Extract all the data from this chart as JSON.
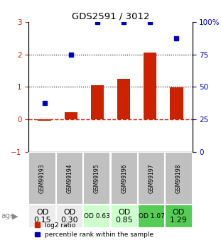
{
  "title": "GDS2591 / 3012",
  "samples": [
    "GSM99193",
    "GSM99194",
    "GSM99195",
    "GSM99196",
    "GSM99197",
    "GSM99198"
  ],
  "log2_ratio": [
    -0.03,
    0.22,
    1.05,
    1.25,
    2.05,
    0.98
  ],
  "percentile_rank": [
    37.5,
    75.0,
    100.0,
    100.0,
    100.0,
    87.5
  ],
  "left_ylim": [
    -1,
    3
  ],
  "right_ylim": [
    0,
    100
  ],
  "left_yticks": [
    -1,
    0,
    1,
    2,
    3
  ],
  "right_yticks": [
    0,
    25,
    50,
    75,
    100
  ],
  "right_yticklabels": [
    "0",
    "25",
    "50",
    "75",
    "100%"
  ],
  "bar_color": "#cc2200",
  "dot_color": "#0000cc",
  "hline_color_zero": "#cc2200",
  "hline_color_12": "#000000",
  "table_header_bg": "#c0c0c0",
  "od_values": [
    "OD\n0.15",
    "OD\n0.30",
    "OD 0.63",
    "OD\n0.85",
    "OD 1.07",
    "OD\n1.29"
  ],
  "od_fontsize": [
    8,
    8,
    6.5,
    8,
    6.5,
    8
  ],
  "od_colors": [
    "#ececec",
    "#ececec",
    "#ccffcc",
    "#ccffcc",
    "#55cc55",
    "#55cc55"
  ],
  "age_label": "age",
  "legend_items": [
    "log2 ratio",
    "percentile rank within the sample"
  ]
}
